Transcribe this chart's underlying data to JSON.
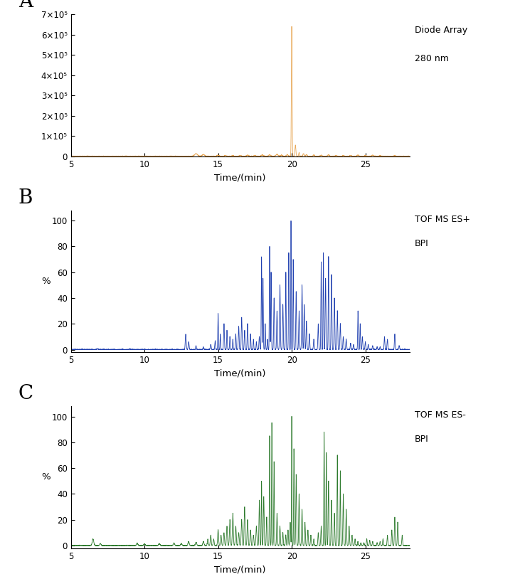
{
  "panel_A": {
    "label": "A",
    "color": "#E8A857",
    "ylim": [
      0,
      700001
    ],
    "yticks": [
      0,
      100000,
      200000,
      300000,
      400000,
      500000,
      600000,
      700000
    ],
    "ytick_labels": [
      "0",
      "1×10⁵",
      "2×10⁵",
      "3×10⁵",
      "4×10⁵",
      "5×10⁵",
      "6×10⁵",
      "7×10⁵"
    ],
    "annotation1": "Diode Array",
    "annotation2": "280 nm"
  },
  "panel_B": {
    "label": "B",
    "color": "#2040B0",
    "ylabel": "%",
    "ylim": [
      -2,
      108
    ],
    "yticks": [
      0,
      20,
      40,
      60,
      80,
      100
    ],
    "annotation1": "TOF MS ES+",
    "annotation2": "BPI"
  },
  "panel_C": {
    "label": "C",
    "color": "#2E7B2E",
    "ylabel": "%",
    "ylim": [
      -2,
      108
    ],
    "yticks": [
      0,
      20,
      40,
      60,
      80,
      100
    ],
    "annotation1": "TOF MS ES-",
    "annotation2": "BPI"
  },
  "xlim": [
    5,
    28
  ],
  "xticks": [
    5,
    10,
    15,
    20,
    25
  ],
  "xlabel": "Time/(min)",
  "bg": "#ffffff"
}
